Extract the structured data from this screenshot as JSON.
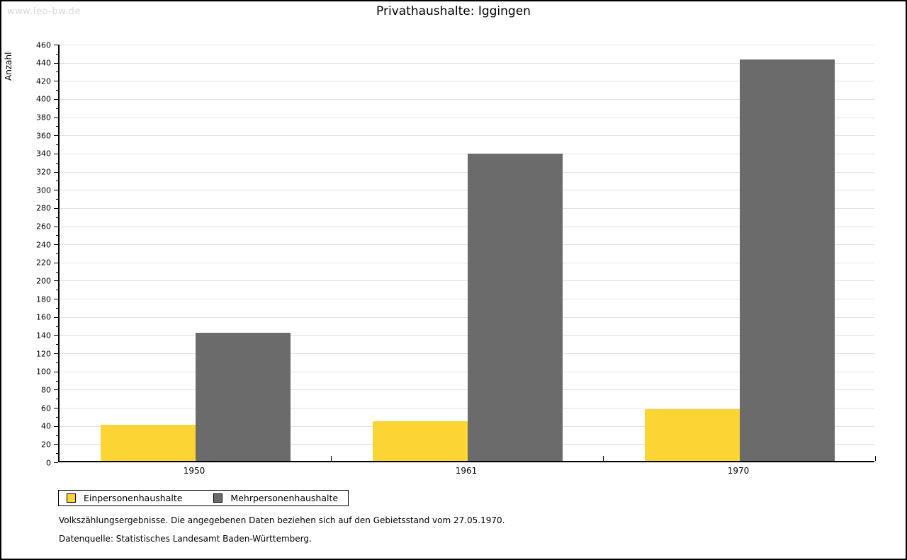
{
  "watermark": "www.leo-bw.de",
  "title": "Privathaushalte: Iggingen",
  "chart_data": {
    "type": "bar",
    "categories": [
      "1950",
      "1961",
      "1970"
    ],
    "series": [
      {
        "name": "Einpersonenhaushalte",
        "color": "#FCD433",
        "values": [
          40,
          44,
          57
        ]
      },
      {
        "name": "Mehrpersonenhaushalte",
        "color": "#6B6B6B",
        "values": [
          141,
          338,
          442
        ]
      }
    ],
    "title": "Privathaushalte: Iggingen",
    "xlabel": "",
    "ylabel": "Anzahl",
    "ylim": [
      0,
      460
    ],
    "ytick_step": 20,
    "minor_tick_step": 10,
    "grid": true,
    "legend_position": "bottom-left",
    "gridline_color": "#E2E2E2",
    "axis_color": "#000000"
  },
  "footer": {
    "line1": "Volkszählungsergebnisse. Die angegebenen Daten beziehen sich auf den Gebietsstand vom 27.05.1970.",
    "line2": "Datenquelle: Statistisches Landesamt Baden-Württemberg."
  }
}
